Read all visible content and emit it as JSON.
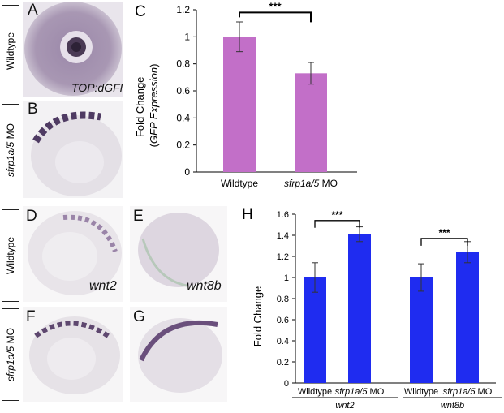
{
  "rows": {
    "top_wildtype": "Wildtype",
    "top_mo_gene": "sfrp1a/5",
    "top_mo_suffix": " MO",
    "bottom_wildtype": "Wildtype",
    "bottom_mo_gene": "sfrp1a/5",
    "bottom_mo_suffix": " MO"
  },
  "panels": {
    "A": {
      "letter": "A",
      "caption": "TOP:dGFP"
    },
    "B": {
      "letter": "B"
    },
    "D": {
      "letter": "D",
      "caption": "wnt2"
    },
    "E": {
      "letter": "E",
      "caption": "wnt8b"
    },
    "F": {
      "letter": "F"
    },
    "G": {
      "letter": "G"
    }
  },
  "colors": {
    "bar_C": "#c26fc8",
    "bar_H": "#1f2cf0",
    "stain": "#5a3f6e",
    "tissue": "#e9e6ea"
  },
  "chart_data": [
    {
      "panel": "C",
      "type": "bar",
      "categories": [
        "Wildtype",
        "sfrp1a/5 MO"
      ],
      "values": [
        1.0,
        0.73
      ],
      "errors": [
        0.11,
        0.08
      ],
      "ylabel_line1": "Fold Change",
      "ylabel_line2": "GFP Expression",
      "ylim": [
        0,
        1.2
      ],
      "yticks": [
        "0",
        "0.2",
        "0.4",
        "0.6",
        "0.8",
        "1",
        "1.2"
      ],
      "significance": "***"
    },
    {
      "panel": "H",
      "type": "bar",
      "categories": [
        "Wildtype",
        "sfrp1a/5 MO",
        "Wildtype",
        "sfrp1a/5 MO"
      ],
      "groups": [
        "wnt2",
        "wnt8b"
      ],
      "values": [
        1.0,
        1.41,
        1.0,
        1.24
      ],
      "errors": [
        0.14,
        0.07,
        0.13,
        0.1
      ],
      "ylabel": "Fold Change",
      "ylim": [
        0,
        1.6
      ],
      "yticks": [
        "0",
        "0.2",
        "0.4",
        "0.6",
        "0.8",
        "1",
        "1.2",
        "1.4",
        "1.6"
      ],
      "significance": [
        "***",
        "***"
      ]
    }
  ]
}
